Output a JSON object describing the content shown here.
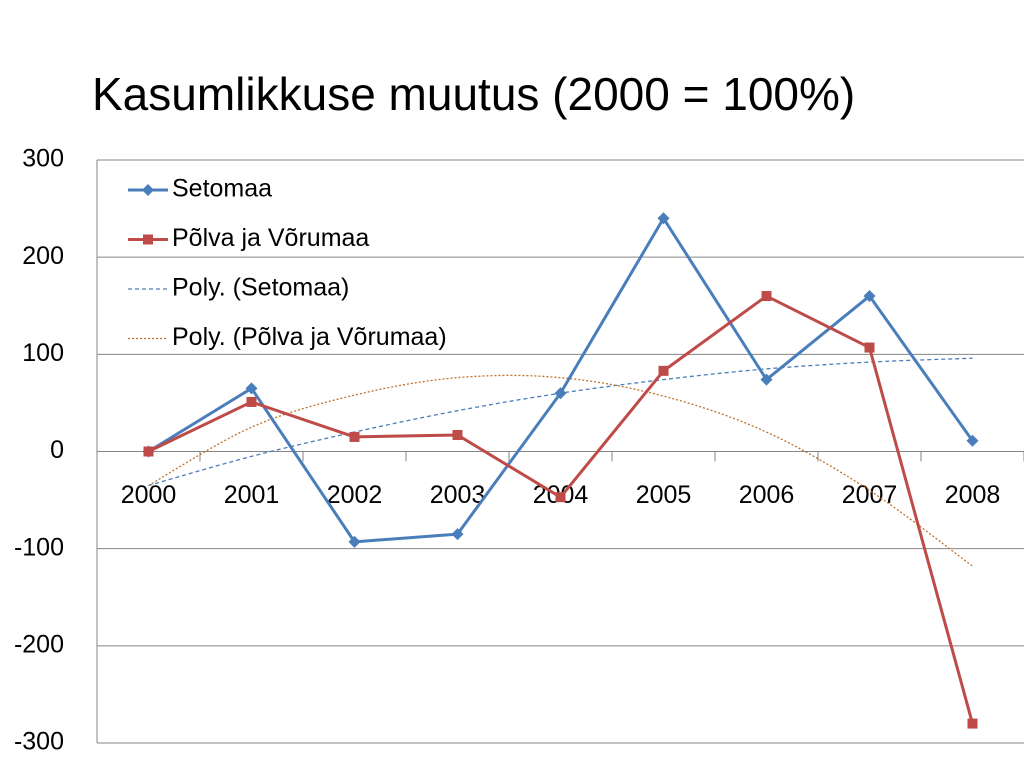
{
  "chart_data": {
    "type": "line",
    "title": "Kasumlikkuse muutus (2000 = 100%)",
    "categories": [
      "2000",
      "2001",
      "2002",
      "2003",
      "2004",
      "2005",
      "2006",
      "2007",
      "2008"
    ],
    "series": [
      {
        "name": "Setomaa",
        "color": "#4a7ebb",
        "style": "solid",
        "marker": "diamond",
        "values": [
          0,
          65,
          -93,
          -85,
          60,
          240,
          74,
          160,
          11
        ]
      },
      {
        "name": "Põlva ja Võrumaa",
        "color": "#be4b48",
        "style": "solid",
        "marker": "square",
        "values": [
          0,
          51,
          15,
          17,
          -47,
          83,
          160,
          107,
          -280
        ]
      },
      {
        "name": "Poly. (Setomaa)",
        "color": "#4a7ebb",
        "style": "dashed",
        "marker": "none",
        "smooth": true,
        "values": [
          -35,
          -5,
          20,
          42,
          60,
          74,
          85,
          92,
          96
        ]
      },
      {
        "name": "Poly. (Põlva ja Võrumaa)",
        "color": "#c0722a",
        "style": "dotted",
        "marker": "none",
        "smooth": true,
        "values": [
          -35,
          25,
          58,
          76,
          76,
          57,
          20,
          -40,
          -118
        ]
      }
    ],
    "ylim": [
      -300,
      300
    ],
    "yticks": [
      -300,
      -200,
      -100,
      0,
      100,
      200,
      300
    ],
    "grid": true,
    "legend": "upper left"
  }
}
